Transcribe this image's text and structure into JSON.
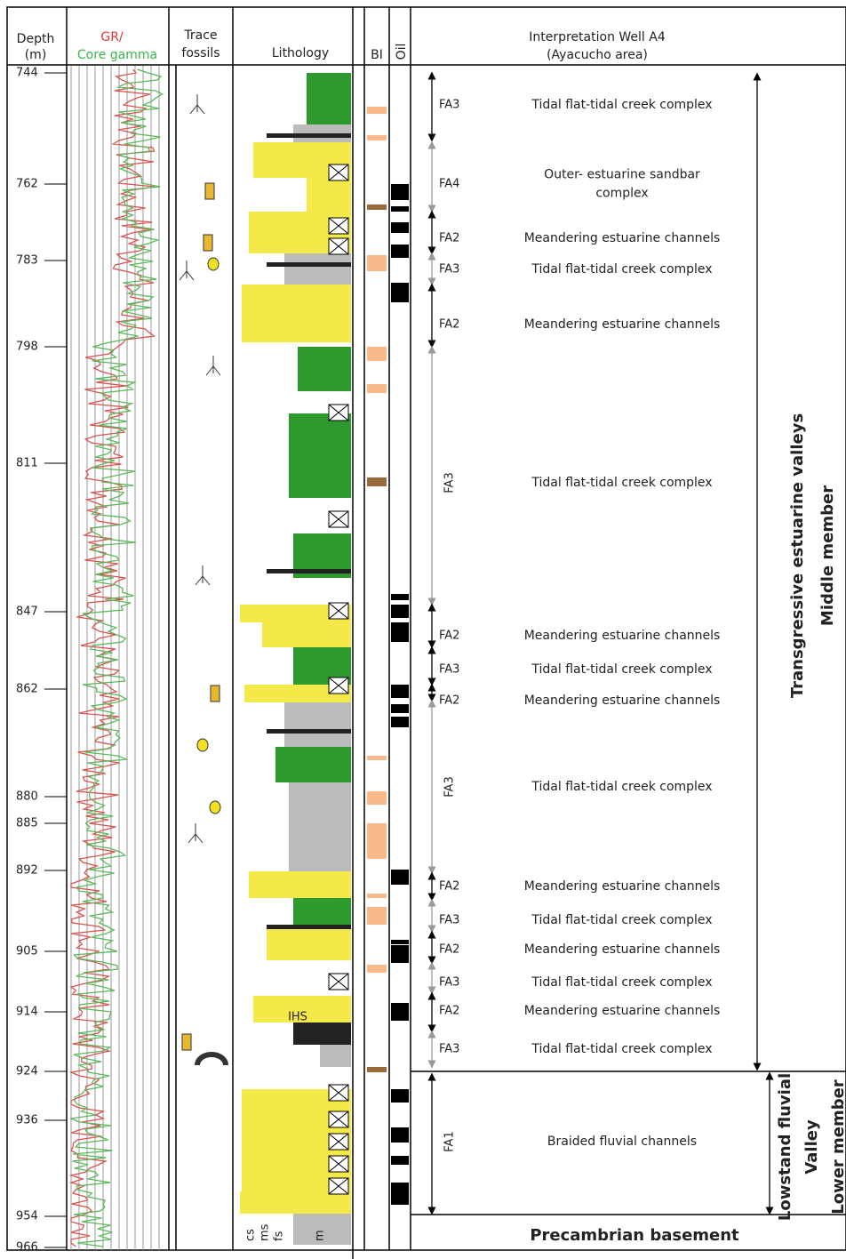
{
  "header": {
    "depth": [
      "Depth",
      "(m)"
    ],
    "gr": "GR/",
    "core_gamma": "Core gamma",
    "trace": [
      "Trace",
      "fossils"
    ],
    "lithology": "Lithology",
    "bi": "BI",
    "oil": "Oil",
    "interpretation": [
      "Interpretation Well A4",
      "(Ayacucho area)"
    ]
  },
  "depth_labels": [
    744,
    762,
    783,
    798,
    811,
    847,
    862,
    880,
    885,
    892,
    905,
    914,
    924,
    936,
    954,
    966
  ],
  "intervals": [
    {
      "code": "FA3",
      "lines": [
        "Tidal flat-tidal creek complex"
      ]
    },
    {
      "code": "FA4",
      "lines": [
        "Outer- estuarine sandbar",
        "complex"
      ]
    },
    {
      "code": "FA2",
      "lines": [
        "Meandering estuarine channels"
      ]
    },
    {
      "code": "FA3",
      "lines": [
        "Tidal flat-tidal creek complex"
      ]
    },
    {
      "code": "FA2",
      "lines": [
        "Meandering estuarine channels"
      ]
    },
    {
      "code": "FA3",
      "lines": [
        "Tidal flat-tidal creek complex"
      ]
    },
    {
      "code": "FA2",
      "lines": [
        "Meandering estuarine channels"
      ]
    },
    {
      "code": "FA3",
      "lines": [
        "Tidal flat-tidal creek complex"
      ]
    },
    {
      "code": "FA2",
      "lines": [
        "Meandering estuarine channels"
      ]
    },
    {
      "code": "FA3",
      "lines": [
        "Tidal flat-tidal creek complex"
      ]
    },
    {
      "code": "FA2",
      "lines": [
        "Meandering estuarine channels"
      ]
    },
    {
      "code": "FA3",
      "lines": [
        "Tidal flat-tidal creek complex"
      ]
    },
    {
      "code": "FA2",
      "lines": [
        "Meandering estuarine channels"
      ]
    },
    {
      "code": "FA3",
      "lines": [
        "Tidal flat-tidal creek complex"
      ]
    },
    {
      "code": "FA2",
      "lines": [
        "Meandering estuarine channels"
      ]
    },
    {
      "code": "FA3",
      "lines": [
        "Tidal flat-tidal creek complex"
      ]
    },
    {
      "code": "FA1",
      "lines": [
        "Braided fluvial channels"
      ]
    }
  ],
  "units": {
    "middle": [
      "Transgressive estuarine valleys",
      "Middle member"
    ],
    "lower": [
      "Lowstand fluvial",
      "Valley",
      "Lower member"
    ],
    "basement": "Precambrian basement"
  },
  "lithology_labels": {
    "ihs": "IHS",
    "grain": [
      "cs",
      "ms",
      "fs",
      "m"
    ]
  }
}
